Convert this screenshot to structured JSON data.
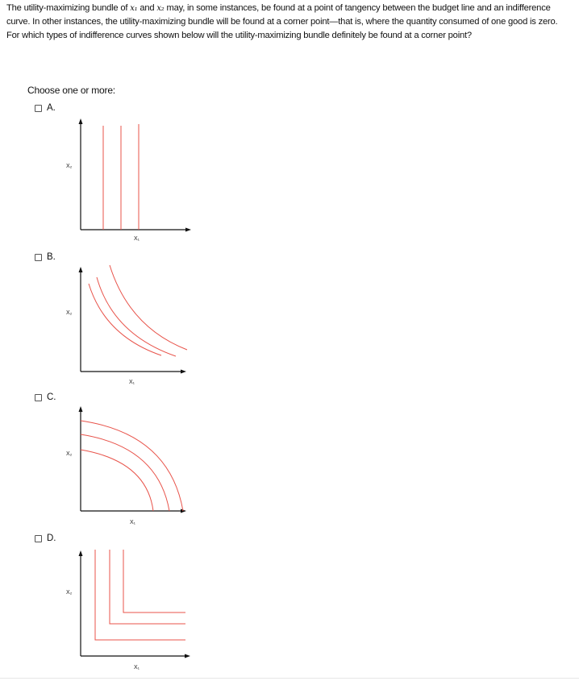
{
  "question": {
    "before_x1": "The utility-maximizing bundle of ",
    "x1": "x₁",
    "and": " and ",
    "x2": "x₂",
    "after_x2": " may, in some instances, be found at a point of tangency between the budget line and an indifference curve. In other instances, the utility-maximizing bundle will be found at a corner point—that is, where the quantity consumed of one good is zero. For which types of indifference curves shown below will the utility-maximizing bundle definitely be found at a corner point?"
  },
  "prompt": "Choose one or more:",
  "options": [
    {
      "label": "A.",
      "checked": false
    },
    {
      "label": "B.",
      "checked": false
    },
    {
      "label": "C.",
      "checked": false
    },
    {
      "label": "D.",
      "checked": false
    }
  ],
  "graphs": {
    "a": {
      "xlabel": "X₁",
      "ylabel": "X₂",
      "curve_type": "vertical lines"
    },
    "b": {
      "xlabel": "X₁",
      "ylabel": "X₂",
      "curve_type": "convex curves"
    },
    "c": {
      "xlabel": "X₁",
      "ylabel": "X₂",
      "curve_type": "concave curves"
    },
    "d": {
      "xlabel": "X₁",
      "ylabel": "X₂",
      "curve_type": "L-shaped curves"
    }
  },
  "colors": {
    "curve": "#e8534a",
    "axis": "#111111",
    "text": "#111111"
  }
}
